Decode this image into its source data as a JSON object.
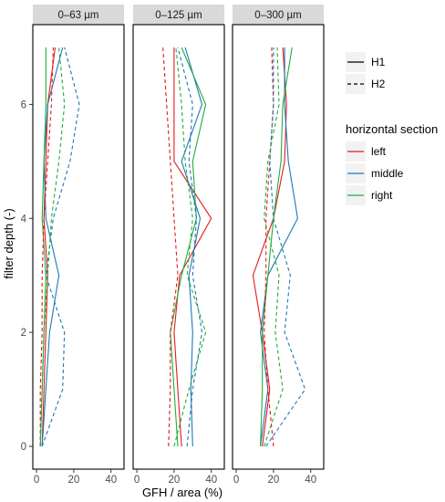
{
  "chart_data": {
    "type": "line",
    "xlabel": "GFH / area (%)",
    "ylabel": "filter depth (-)",
    "xlim": [
      -2,
      47
    ],
    "ylim": [
      -0.4,
      7.4
    ],
    "xticks": [
      0,
      20,
      40
    ],
    "yticks": [
      0,
      2,
      4,
      6
    ],
    "grid": false,
    "legend_position": "right",
    "linetype_legend": {
      "title": "",
      "items": [
        {
          "label": "H1",
          "dash": "solid"
        },
        {
          "label": "H2",
          "dash": "dashed"
        }
      ]
    },
    "color_legend": {
      "title": "horizontal section",
      "items": [
        {
          "label": "left",
          "color": "#e41a1c"
        },
        {
          "label": "middle",
          "color": "#1f78b4"
        },
        {
          "label": "right",
          "color": "#1fae3a"
        }
      ]
    },
    "panels": [
      {
        "title": "0–63 µm",
        "series": [
          {
            "section": "left",
            "line": "H1",
            "points": [
              [
                3,
                0
              ],
              [
                4,
                1
              ],
              [
                5,
                2
              ],
              [
                6,
                3
              ],
              [
                4,
                4
              ],
              [
                5,
                5
              ],
              [
                6,
                6
              ],
              [
                10,
                7
              ]
            ]
          },
          {
            "section": "middle",
            "line": "H1",
            "points": [
              [
                3,
                0
              ],
              [
                5,
                1
              ],
              [
                7,
                2
              ],
              [
                12,
                3
              ],
              [
                5,
                4
              ],
              [
                4,
                5
              ],
              [
                6,
                6
              ],
              [
                14,
                7
              ]
            ]
          },
          {
            "section": "right",
            "line": "H1",
            "points": [
              [
                2,
                0
              ],
              [
                3,
                1
              ],
              [
                4,
                2
              ],
              [
                5,
                3
              ],
              [
                3,
                4
              ],
              [
                4,
                5
              ],
              [
                5,
                6
              ],
              [
                5,
                7
              ]
            ]
          },
          {
            "section": "left",
            "line": "H2",
            "points": [
              [
                2,
                0
              ],
              [
                2,
                1
              ],
              [
                3,
                2
              ],
              [
                3,
                3
              ],
              [
                4,
                4
              ],
              [
                6,
                5
              ],
              [
                8,
                6
              ],
              [
                9,
                7
              ]
            ]
          },
          {
            "section": "middle",
            "line": "H2",
            "points": [
              [
                3,
                0
              ],
              [
                14,
                1
              ],
              [
                15,
                2
              ],
              [
                5,
                3
              ],
              [
                9,
                4
              ],
              [
                18,
                5
              ],
              [
                23,
                6
              ],
              [
                15,
                7
              ]
            ]
          },
          {
            "section": "right",
            "line": "H2",
            "points": [
              [
                2,
                0
              ],
              [
                3,
                1
              ],
              [
                4,
                2
              ],
              [
                6,
                3
              ],
              [
                8,
                4
              ],
              [
                12,
                5
              ],
              [
                15,
                6
              ],
              [
                12,
                7
              ]
            ]
          }
        ]
      },
      {
        "title": "0–125 µm",
        "series": [
          {
            "section": "left",
            "line": "H1",
            "points": [
              [
                24,
                0
              ],
              [
                22,
                1
              ],
              [
                20,
                2
              ],
              [
                23,
                3
              ],
              [
                40,
                4
              ],
              [
                20,
                5
              ],
              [
                20,
                6
              ],
              [
                20,
                7
              ]
            ]
          },
          {
            "section": "middle",
            "line": "H1",
            "points": [
              [
                30,
                0
              ],
              [
                29,
                1
              ],
              [
                30,
                2
              ],
              [
                28,
                3
              ],
              [
                34,
                4
              ],
              [
                24,
                5
              ],
              [
                35,
                6
              ],
              [
                26,
                7
              ]
            ]
          },
          {
            "section": "right",
            "line": "H1",
            "points": [
              [
                22,
                0
              ],
              [
                20,
                1
              ],
              [
                18,
                2
              ],
              [
                24,
                3
              ],
              [
                32,
                4
              ],
              [
                30,
                5
              ],
              [
                37,
                6
              ],
              [
                24,
                7
              ]
            ]
          },
          {
            "section": "left",
            "line": "H2",
            "points": [
              [
                17,
                0
              ],
              [
                18,
                1
              ],
              [
                18,
                2
              ],
              [
                22,
                3
              ],
              [
                20,
                4
              ],
              [
                18,
                5
              ],
              [
                16,
                6
              ],
              [
                14,
                7
              ]
            ]
          },
          {
            "section": "middle",
            "line": "H2",
            "points": [
              [
                27,
                0
              ],
              [
                30,
                1
              ],
              [
                35,
                2
              ],
              [
                30,
                3
              ],
              [
                32,
                4
              ],
              [
                28,
                5
              ],
              [
                30,
                6
              ],
              [
                22,
                7
              ]
            ]
          },
          {
            "section": "right",
            "line": "H2",
            "points": [
              [
                20,
                0
              ],
              [
                28,
                1
              ],
              [
                37,
                2
              ],
              [
                27,
                3
              ],
              [
                30,
                4
              ],
              [
                26,
                5
              ],
              [
                24,
                6
              ],
              [
                21,
                7
              ]
            ]
          }
        ]
      },
      {
        "title": "0–300 µm",
        "series": [
          {
            "section": "left",
            "line": "H1",
            "points": [
              [
                14,
                0
              ],
              [
                18,
                1
              ],
              [
                14,
                2
              ],
              [
                9,
                3
              ],
              [
                20,
                4
              ],
              [
                26,
                5
              ],
              [
                27,
                6
              ],
              [
                25,
                7
              ]
            ]
          },
          {
            "section": "middle",
            "line": "H1",
            "points": [
              [
                13,
                0
              ],
              [
                17,
                1
              ],
              [
                13,
                2
              ],
              [
                17,
                3
              ],
              [
                33,
                4
              ],
              [
                28,
                5
              ],
              [
                26,
                6
              ],
              [
                26,
                7
              ]
            ]
          },
          {
            "section": "right",
            "line": "H1",
            "points": [
              [
                13,
                0
              ],
              [
                14,
                1
              ],
              [
                14,
                2
              ],
              [
                17,
                3
              ],
              [
                20,
                4
              ],
              [
                24,
                5
              ],
              [
                25,
                6
              ],
              [
                30,
                7
              ]
            ]
          },
          {
            "section": "left",
            "line": "H2",
            "points": [
              [
                20,
                0
              ],
              [
                17,
                1
              ],
              [
                15,
                2
              ],
              [
                16,
                3
              ],
              [
                16,
                4
              ],
              [
                18,
                5
              ],
              [
                20,
                6
              ],
              [
                19,
                7
              ]
            ]
          },
          {
            "section": "middle",
            "line": "H2",
            "points": [
              [
                16,
                0
              ],
              [
                37,
                1
              ],
              [
                26,
                2
              ],
              [
                29,
                3
              ],
              [
                20,
                4
              ],
              [
                18,
                5
              ],
              [
                20,
                6
              ],
              [
                20,
                7
              ]
            ]
          },
          {
            "section": "right",
            "line": "H2",
            "points": [
              [
                15,
                0
              ],
              [
                25,
                1
              ],
              [
                21,
                2
              ],
              [
                23,
                3
              ],
              [
                15,
                4
              ],
              [
                17,
                5
              ],
              [
                23,
                6
              ],
              [
                22,
                7
              ]
            ]
          }
        ]
      }
    ]
  }
}
